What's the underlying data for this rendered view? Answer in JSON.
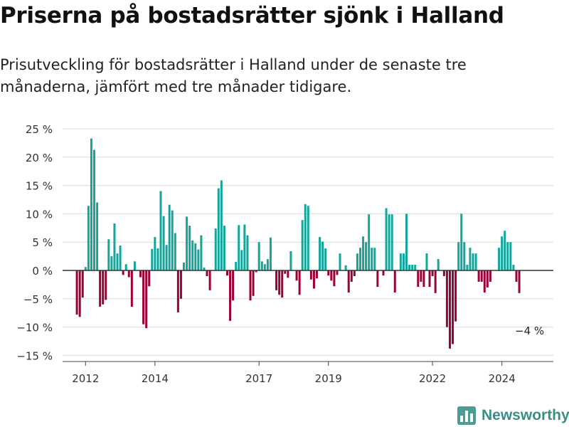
{
  "title": "Priserna på bostadsrätter sjönk i Halland",
  "subtitle": "Prisutveckling för bostadsrätter i Halland under de senaste tre månaderna, jämfört med tre månader tidigare.",
  "brand": {
    "name": "Newsworthy",
    "logo_icon": "bar-chart-logo-icon"
  },
  "chart_data": {
    "type": "bar",
    "unit": "%",
    "x_start": "2011-10",
    "x_step": "month",
    "xticks": [
      {
        "label": "2012",
        "x": "2012-01"
      },
      {
        "label": "2014",
        "x": "2014-01"
      },
      {
        "label": "2017",
        "x": "2017-01"
      },
      {
        "label": "2019",
        "x": "2019-01"
      },
      {
        "label": "2022",
        "x": "2022-01"
      },
      {
        "label": "2024",
        "x": "2024-01"
      }
    ],
    "yticks": [
      {
        "label": "25 %",
        "value": 25
      },
      {
        "label": "20 %",
        "value": 20
      },
      {
        "label": "15 %",
        "value": 15
      },
      {
        "label": "10 %",
        "value": 10
      },
      {
        "label": "5 %",
        "value": 5
      },
      {
        "label": "0 %",
        "value": 0
      },
      {
        "label": "−5 %",
        "value": -5
      },
      {
        "label": "−10 %",
        "value": -10
      },
      {
        "label": "−15 %",
        "value": -15
      }
    ],
    "ylim": [
      -16,
      26
    ],
    "grid": true,
    "colors": {
      "positive": "#14a59a",
      "negative": "#9b0039",
      "grid": "#d8d8d8",
      "zero_line": "#333333"
    },
    "annotation": {
      "text": "−4 %",
      "value": -4
    },
    "values": [
      -7.8,
      -8.2,
      -4.8,
      0.6,
      11.4,
      23.3,
      21.3,
      12.0,
      -6.4,
      -6.0,
      -5.2,
      5.5,
      2.5,
      8.3,
      3.0,
      4.4,
      -0.8,
      1.1,
      -1.2,
      -6.4,
      1.6,
      0,
      -1.2,
      -9.5,
      -10.2,
      -2.8,
      3.8,
      5.9,
      3.9,
      14.0,
      9.6,
      4.5,
      11.6,
      10.6,
      6.6,
      -7.4,
      -5.0,
      1.4,
      9.5,
      7.9,
      5.3,
      4.8,
      3.7,
      6.2,
      0.5,
      -1.0,
      -3.5,
      0,
      7.4,
      14.5,
      15.9,
      7.9,
      -0.9,
      -8.9,
      -5.3,
      1.5,
      8.0,
      3.6,
      8.1,
      6.2,
      -5.3,
      -4.5,
      -0.3,
      5.0,
      1.6,
      1.1,
      2.0,
      5.8,
      0,
      -3.5,
      -4.3,
      -4.8,
      -0.6,
      -1.3,
      3.4,
      0,
      -1.8,
      -4.3,
      8.9,
      11.7,
      11.4,
      -1.6,
      -3.2,
      -1.4,
      5.9,
      5.1,
      3.9,
      -0.9,
      -1.8,
      -2.8,
      -0.8,
      3.0,
      0,
      0.9,
      -3.9,
      -2.0,
      -1.0,
      3.0,
      4.0,
      6.0,
      5.0,
      9.9,
      4.0,
      4.0,
      -2.9,
      0,
      -0.9,
      11.0,
      9.9,
      9.9,
      -3.9,
      0,
      3.0,
      3.0,
      10.0,
      1.0,
      1.0,
      1.0,
      -2.9,
      -2.0,
      -2.9,
      3.0,
      -2.9,
      -1.0,
      -4.0,
      2.0,
      0,
      -1.0,
      -10.0,
      -13.8,
      -13.0,
      -9.0,
      5.0,
      10.0,
      5.0,
      1.0,
      4.0,
      3.0,
      3.0,
      -2.0,
      -2.0,
      -3.9,
      -3.0,
      -2.0,
      0,
      0,
      4.0,
      6.0,
      7.0,
      5.0,
      5.0,
      1.0,
      -2.0,
      -4.0
    ]
  }
}
